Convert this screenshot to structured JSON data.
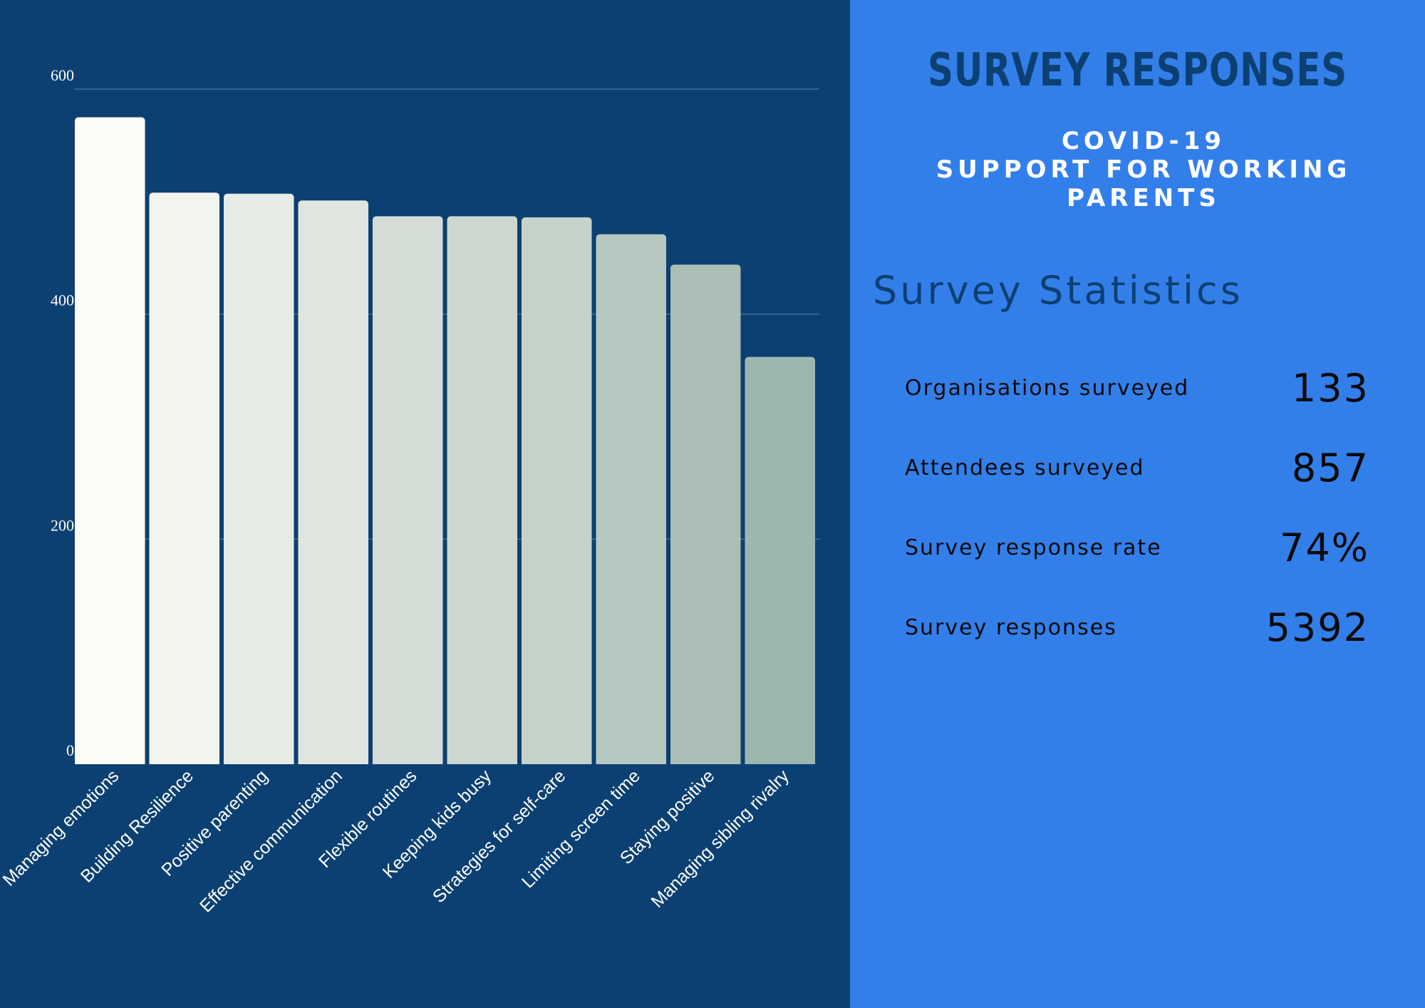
{
  "chart_data": {
    "type": "bar",
    "categories": [
      "Managing emotions",
      "Building Resilience",
      "Positive parenting",
      "Effective communication",
      "Flexible routines",
      "Keeping kids busy",
      "Strategies for self-care",
      "Limiting screen time",
      "Staying positive",
      "Managing sibling rivalry"
    ],
    "values": [
      575,
      508,
      507,
      501,
      487,
      487,
      486,
      471,
      444,
      362
    ],
    "yticks": [
      0,
      200,
      400,
      600
    ],
    "ylim": [
      0,
      600
    ],
    "grid": true,
    "bar_colors": [
      "#fcfcf8",
      "#f2f4f0",
      "#e8ece6",
      "#e0e6df",
      "#d4ddd5",
      "#ccd8cf",
      "#c6d3ca",
      "#b6c8bf",
      "#aabeb6",
      "#9eb6b0"
    ],
    "grid_color": "#4d7aa3",
    "label_color": "#ffffff"
  },
  "header": {
    "title": "SURVEY RESPONSES",
    "subtitle_lines": [
      "COVID-19",
      "SUPPORT FOR WORKING",
      "PARENTS"
    ]
  },
  "stats": {
    "heading": "Survey Statistics",
    "items": [
      {
        "label": "Organisations surveyed",
        "value": "133"
      },
      {
        "label": "Attendees surveyed",
        "value": "857"
      },
      {
        "label": "Survey response rate",
        "value": "74%"
      },
      {
        "label": "Survey responses",
        "value": "5392"
      }
    ]
  },
  "colors": {
    "left_background": "#0c4072",
    "right_background": "#337fea"
  }
}
